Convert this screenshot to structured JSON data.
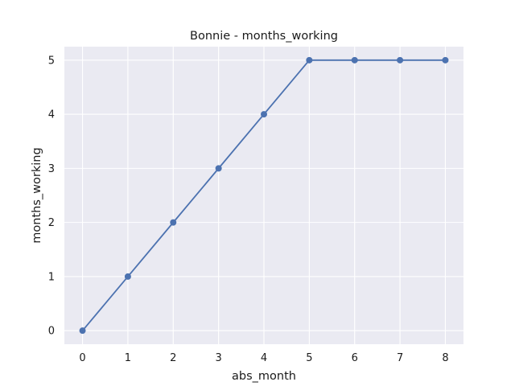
{
  "chart_data": {
    "type": "line",
    "title": "Bonnie - months_working",
    "xlabel": "abs_month",
    "ylabel": "months_working",
    "x": [
      0,
      1,
      2,
      3,
      4,
      5,
      6,
      7,
      8
    ],
    "series": [
      {
        "values": [
          0,
          1,
          2,
          3,
          4,
          5,
          5,
          5,
          5
        ],
        "color": "#4c72b0",
        "marker": "circle"
      }
    ],
    "xticks": [
      "0",
      "1",
      "2",
      "3",
      "4",
      "5",
      "6",
      "7",
      "8"
    ],
    "yticks": [
      "0",
      "1",
      "2",
      "3",
      "4",
      "5"
    ],
    "xlim": [
      -0.4,
      8.4
    ],
    "ylim": [
      -0.25,
      5.25
    ],
    "grid": true,
    "background_color": "#eaeaf2",
    "grid_color": "#ffffff"
  }
}
